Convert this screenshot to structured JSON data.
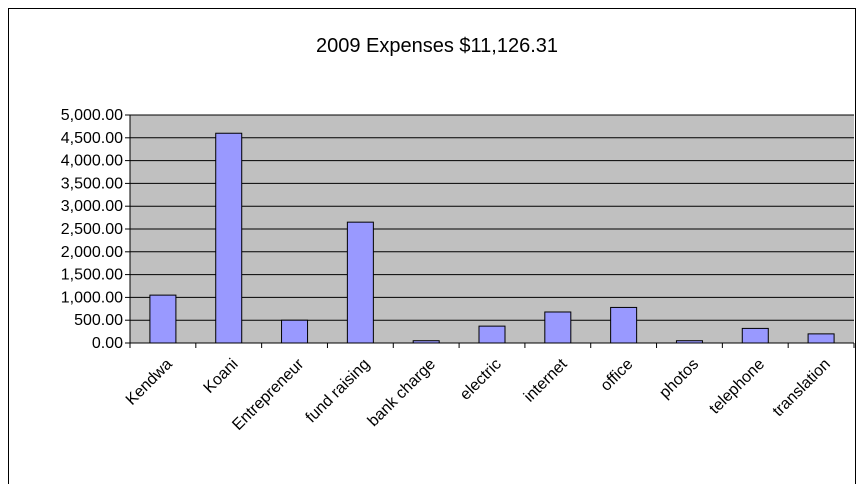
{
  "chart_data": {
    "type": "bar",
    "title": "2009 Expenses $11,126.31",
    "categories": [
      "Kendwa",
      "Koani",
      "Entrepreneur",
      "fund raising",
      "bank charge",
      "electric",
      "internet",
      "office",
      "photos",
      "telephone",
      "translation"
    ],
    "values": [
      1050,
      4600,
      500,
      2650,
      50,
      370,
      680,
      780,
      50,
      320,
      200
    ],
    "ylim": [
      0,
      5000
    ],
    "yticks": [
      "0.00",
      "500.00",
      "1,000.00",
      "1,500.00",
      "2,000.00",
      "2,500.00",
      "3,000.00",
      "3,500.00",
      "4,000.00",
      "4,500.00",
      "5,000.00"
    ],
    "xlabel": "",
    "ylabel": "",
    "grid": true,
    "legend": "none",
    "colors": {
      "plot_area": "#c0c0c0",
      "bar_fill": "#9999ff",
      "bar_stroke": "#000000",
      "gridline": "#000000"
    }
  }
}
